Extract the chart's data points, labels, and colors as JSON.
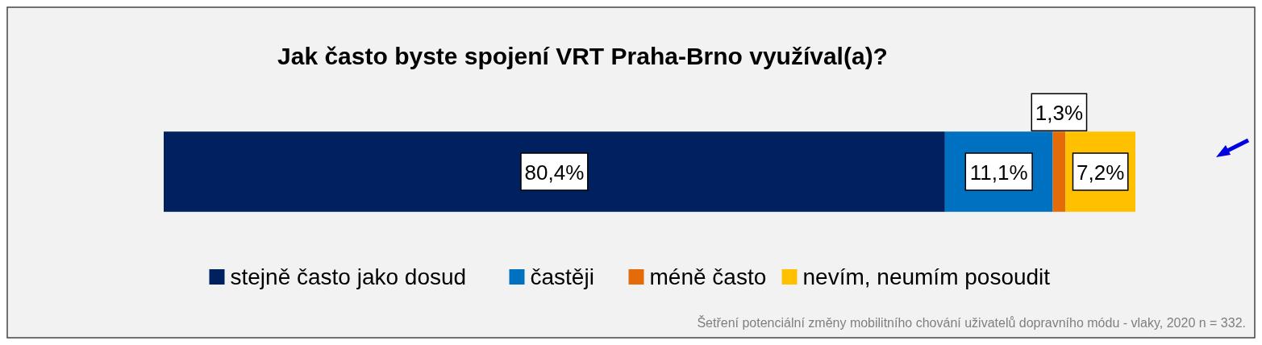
{
  "chart_data": {
    "type": "bar",
    "orientation": "horizontal",
    "stacked": true,
    "title": "Jak často byste spojení VRT Praha-Brno využíval(a)?",
    "categories": [
      null
    ],
    "series": [
      {
        "name": "stejně často jako dosud",
        "color": "#002060",
        "values": [
          80.4
        ],
        "value_labels": [
          "80,4%"
        ]
      },
      {
        "name": "častěji",
        "color": "#0070c0",
        "values": [
          11.1
        ],
        "value_labels": [
          "11,1%"
        ]
      },
      {
        "name": "méně často",
        "color": "#e36c09",
        "values": [
          1.3
        ],
        "value_labels": [
          "1,3%"
        ]
      },
      {
        "name": "nevím, neumím posoudit",
        "color": "#ffc000",
        "values": [
          7.2
        ],
        "value_labels": [
          "7,2%"
        ]
      }
    ],
    "legend": "bottom",
    "annotations": [
      "Šetření potenciální změny mobilitního chování uživatelů dopravního módu - vlaky, 2020 n = 332."
    ]
  }
}
